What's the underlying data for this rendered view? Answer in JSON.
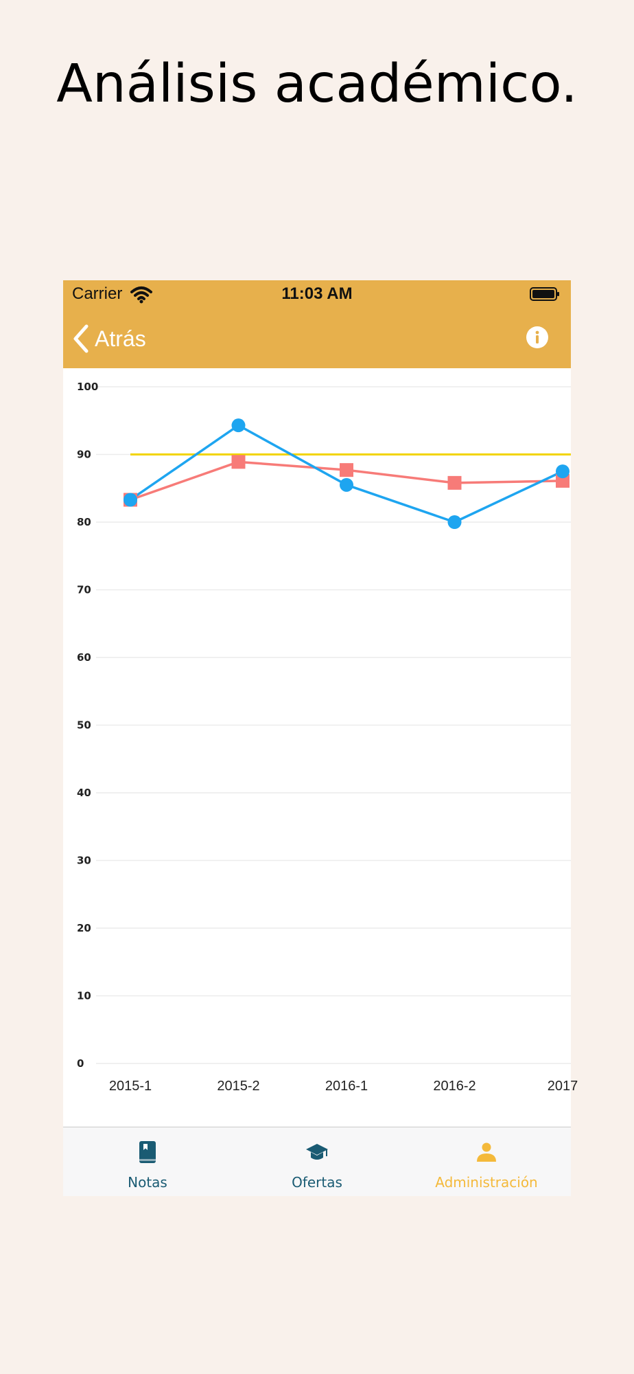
{
  "headline": "Análisis académico.",
  "status_bar": {
    "carrier": "Carrier",
    "time": "11:03 AM"
  },
  "nav": {
    "back_label": "Atrás"
  },
  "tabs": [
    {
      "label": "Notas",
      "icon": "book-icon",
      "color": "#1a5b73",
      "active": false
    },
    {
      "label": "Ofertas",
      "icon": "graduation-cap-icon",
      "color": "#1a5b73",
      "active": false
    },
    {
      "label": "Administración",
      "icon": "person-icon",
      "color": "#f4b93a",
      "active": true
    }
  ],
  "colors": {
    "accent": "#e7b04c",
    "background": "#f9f1eb",
    "series_blue": "#1ea5f0",
    "series_red": "#f77b78",
    "reference_line": "#f2d400"
  },
  "chart_data": {
    "type": "line",
    "categories": [
      "2015-1",
      "2015-2",
      "2016-1",
      "2016-2",
      "2017"
    ],
    "ylim": [
      0,
      100
    ],
    "yticks": [
      0,
      10,
      20,
      30,
      40,
      50,
      60,
      70,
      80,
      90,
      100
    ],
    "grid": true,
    "series": [
      {
        "values": [
          83.3,
          94.3,
          85.5,
          80,
          87.5
        ],
        "color": "#1ea5f0",
        "marker": "circle"
      },
      {
        "values": [
          83.3,
          88.9,
          87.7,
          85.8,
          86.1
        ],
        "color": "#f77b78",
        "marker": "square"
      }
    ],
    "reference_line": {
      "value": 90,
      "color": "#f2d400"
    }
  }
}
